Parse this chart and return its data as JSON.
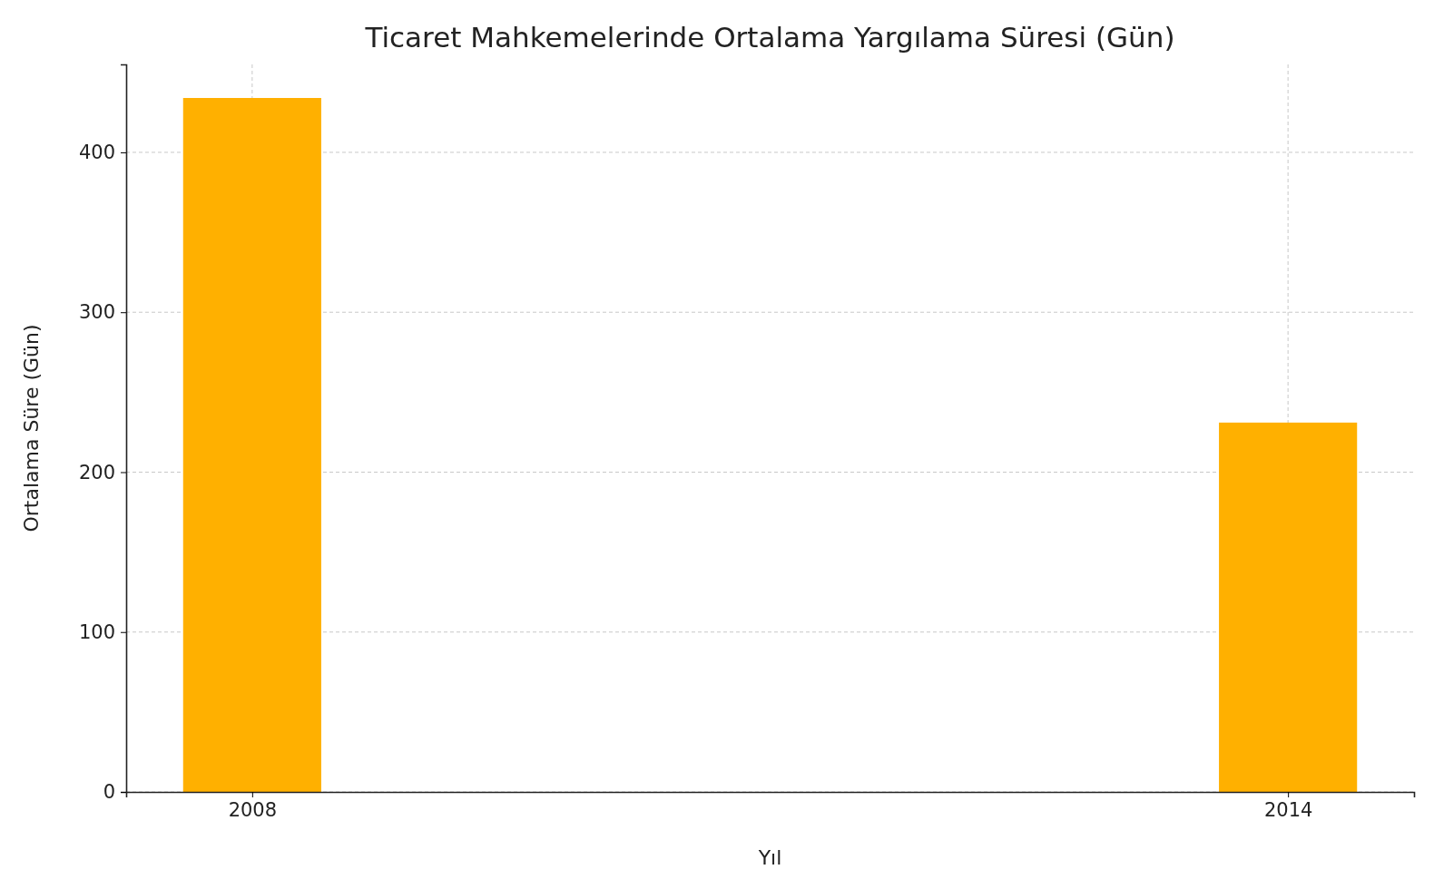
{
  "chart_data": {
    "type": "bar",
    "title": "Ticaret Mahkemelerinde Ortalama Yargılama Süresi (Gün)",
    "xlabel": "Yıl",
    "ylabel": "Ortalama Süre (Gün)",
    "x": [
      2008,
      2014
    ],
    "values": [
      434,
      231
    ],
    "color": "#ffb000",
    "xlim": [
      2007.27,
      2014.73
    ],
    "xticks": [
      2008,
      2014
    ],
    "ylim": [
      0,
      455
    ],
    "yticks": [
      0,
      100,
      200,
      300,
      400
    ],
    "grid": true
  }
}
